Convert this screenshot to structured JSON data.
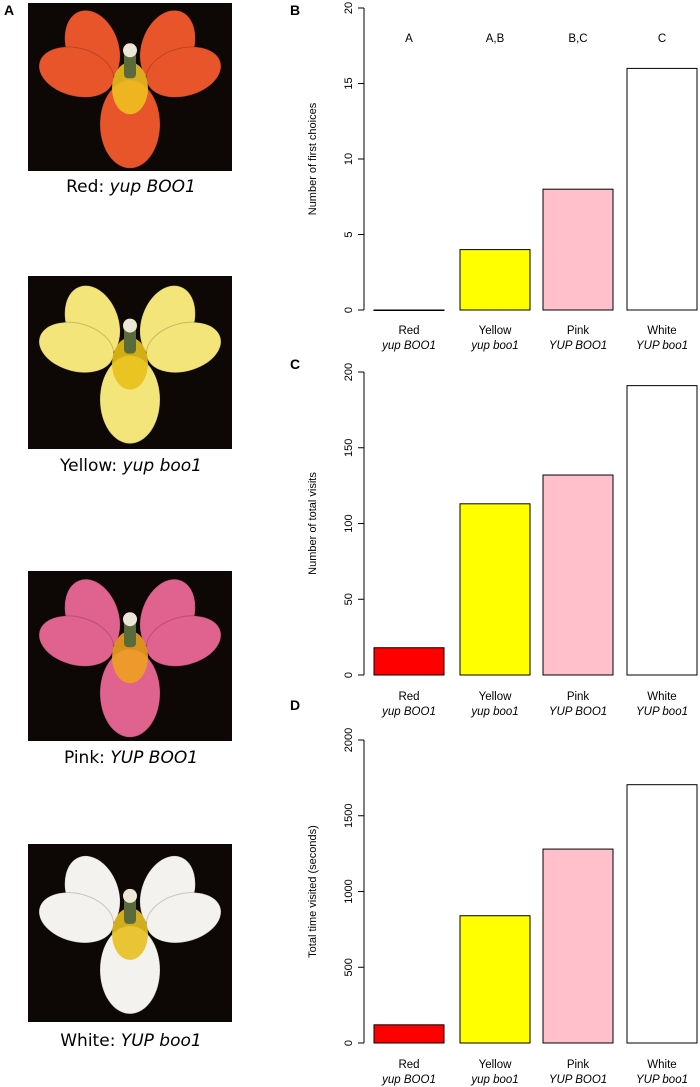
{
  "panels": {
    "a": "A",
    "b": "B",
    "c": "C",
    "d": "D"
  },
  "photos": [
    {
      "color_name": "Red",
      "genotype": "yup BOO1",
      "petal": "#e8552b",
      "throat": "#f0c020"
    },
    {
      "color_name": "Yellow",
      "genotype": "yup boo1",
      "petal": "#f3e57a",
      "throat": "#e8c018"
    },
    {
      "color_name": "Pink",
      "genotype": "YUP BOO1",
      "petal": "#e0628f",
      "throat": "#f0a020"
    },
    {
      "color_name": "White",
      "genotype": "YUP boo1",
      "petal": "#f4f2ee",
      "throat": "#e8c020"
    }
  ],
  "caption_sep": ":",
  "chart_data": [
    {
      "type": "bar",
      "panel": "B",
      "categories": [
        "Red",
        "Yellow",
        "Pink",
        "White"
      ],
      "genotypes": [
        "yup BOO1",
        "yup boo1",
        "YUP BOO1",
        "YUP boo1"
      ],
      "values": [
        0,
        4,
        8,
        16
      ],
      "colors": [
        "#ff0000",
        "#ffff00",
        "#ffc0cb",
        "#ffffff"
      ],
      "significance": [
        "A",
        "A,B",
        "B,C",
        "C"
      ],
      "ylabel": "Number of first choices",
      "ylim": [
        0,
        20
      ],
      "yticks": [
        0,
        5,
        10,
        15,
        20
      ]
    },
    {
      "type": "bar",
      "panel": "C",
      "categories": [
        "Red",
        "Yellow",
        "Pink",
        "White"
      ],
      "genotypes": [
        "yup BOO1",
        "yup boo1",
        "YUP BOO1",
        "YUP boo1"
      ],
      "values": [
        18,
        113,
        132,
        191
      ],
      "colors": [
        "#ff0000",
        "#ffff00",
        "#ffc0cb",
        "#ffffff"
      ],
      "ylabel": "Number of total visits",
      "ylim": [
        0,
        200
      ],
      "yticks": [
        0,
        50,
        100,
        150,
        200
      ]
    },
    {
      "type": "bar",
      "panel": "D",
      "categories": [
        "Red",
        "Yellow",
        "Pink",
        "White"
      ],
      "genotypes": [
        "yup BOO1",
        "yup boo1",
        "YUP BOO1",
        "YUP boo1"
      ],
      "values": [
        120,
        840,
        1280,
        1705
      ],
      "colors": [
        "#ff0000",
        "#ffff00",
        "#ffc0cb",
        "#ffffff"
      ],
      "ylabel": "Total time visited (seconds)",
      "ylim": [
        0,
        2000
      ],
      "yticks": [
        0,
        500,
        1000,
        1500,
        2000
      ]
    }
  ]
}
